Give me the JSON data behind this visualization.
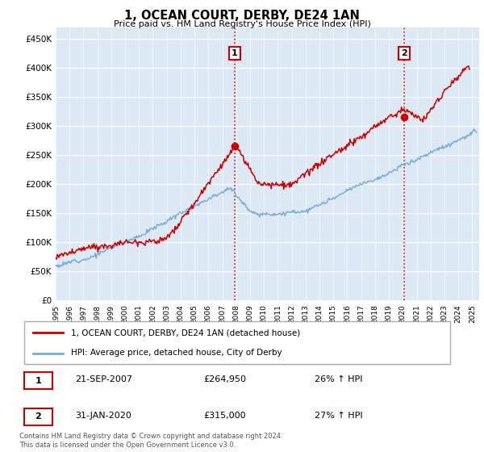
{
  "title": "1, OCEAN COURT, DERBY, DE24 1AN",
  "subtitle": "Price paid vs. HM Land Registry's House Price Index (HPI)",
  "background_color": "#dce9f5",
  "plot_bg_color": "#dce9f5",
  "ylim": [
    0,
    470000
  ],
  "yticks": [
    0,
    50000,
    100000,
    150000,
    200000,
    250000,
    300000,
    350000,
    400000,
    450000
  ],
  "marker1": {
    "label": "1",
    "date": "21-SEP-2007",
    "price": 264950,
    "hpi_pct": "26% ↑ HPI",
    "x_year": 2007.9
  },
  "marker2": {
    "label": "2",
    "date": "31-JAN-2020",
    "price": 315000,
    "hpi_pct": "27% ↑ HPI",
    "x_year": 2020.1
  },
  "legend_line1": "1, OCEAN COURT, DERBY, DE24 1AN (detached house)",
  "legend_line2": "HPI: Average price, detached house, City of Derby",
  "line1_color": "#cc0000",
  "line2_color": "#7aadd4",
  "footer": "Contains HM Land Registry data © Crown copyright and database right 2024.\nThis data is licensed under the Open Government Licence v3.0.",
  "xmin": 1995,
  "xmax": 2025.5
}
